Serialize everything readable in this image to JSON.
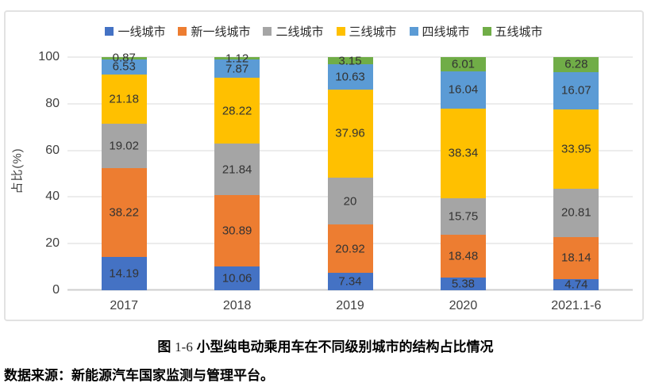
{
  "chart_data": {
    "type": "bar",
    "subtype": "stacked-percent",
    "categories": [
      "2017",
      "2018",
      "2019",
      "2020",
      "2021.1-6"
    ],
    "series": [
      {
        "name": "一线城市",
        "color": "#4472C4",
        "values": [
          14.19,
          10.06,
          7.34,
          5.38,
          4.74
        ]
      },
      {
        "name": "新一线城市",
        "color": "#ED7D31",
        "values": [
          38.22,
          30.89,
          20.92,
          18.48,
          18.14
        ]
      },
      {
        "name": "二线城市",
        "color": "#A5A5A5",
        "values": [
          19.02,
          21.84,
          20,
          15.75,
          20.81
        ]
      },
      {
        "name": "三线城市",
        "color": "#FFC000",
        "values": [
          21.18,
          28.22,
          37.96,
          38.34,
          33.95
        ]
      },
      {
        "name": "四线城市",
        "color": "#5B9BD5",
        "values": [
          6.53,
          7.87,
          10.63,
          16.04,
          16.07
        ]
      },
      {
        "name": "五线城市",
        "color": "#70AD47",
        "values": [
          0.87,
          1.12,
          3.15,
          6.01,
          6.28
        ]
      }
    ],
    "ylabel": "占比(%)",
    "yticks": [
      0,
      20,
      40,
      60,
      80,
      100
    ],
    "ylim": [
      0,
      100
    ],
    "grid": true,
    "legend_position": "top",
    "gridline_color": "#D9D9D9"
  },
  "caption": {
    "prefix": "图",
    "number": "1-6",
    "text": "小型纯电动乘用车在不同级别城市的结构占比情况"
  },
  "source": "数据来源：新能源汽车国家监测与管理平台。"
}
